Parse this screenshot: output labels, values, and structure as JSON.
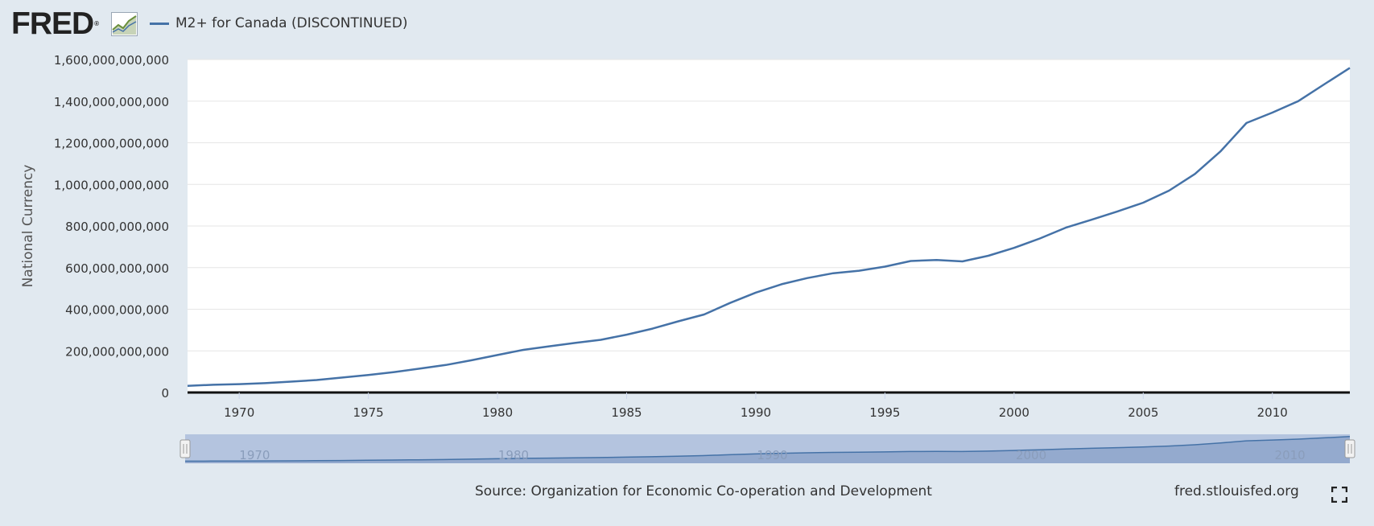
{
  "header": {
    "logo_text": "FRED",
    "logo_reg": "®",
    "logo_icon": "line-chart-icon",
    "legend_label": "M2+ for Canada (DISCONTINUED)"
  },
  "footer": {
    "source": "Source: Organization for Economic Co-operation and Development",
    "site": "fred.stlouisfed.org",
    "fullscreen_icon": "fullscreen-icon"
  },
  "colors": {
    "background": "#e1e9f0",
    "plot_bg": "#ffffff",
    "series": "#4572a7",
    "navigator_mask": "#b4c4df",
    "navigator_area": "#8aa1c8"
  },
  "chart_data": {
    "type": "line",
    "title": "",
    "ylabel": "National Currency",
    "xlabel": "",
    "xlim": [
      1968,
      2013
    ],
    "ylim": [
      0,
      1600000000000
    ],
    "grid": true,
    "legend_position": "top-left",
    "yticks": [
      0,
      200000000000,
      400000000000,
      600000000000,
      800000000000,
      1000000000000,
      1200000000000,
      1400000000000,
      1600000000000
    ],
    "ytick_labels": [
      "0",
      "200,000,000,000",
      "400,000,000,000",
      "600,000,000,000",
      "800,000,000,000",
      "1,000,000,000,000",
      "1,200,000,000,000",
      "1,400,000,000,000",
      "1,600,000,000,000"
    ],
    "xticks": [
      1970,
      1975,
      1980,
      1985,
      1990,
      1995,
      2000,
      2005,
      2010
    ],
    "xtick_labels": [
      "1970",
      "1975",
      "1980",
      "1985",
      "1990",
      "1995",
      "2000",
      "2005",
      "2010"
    ],
    "navigator_labels": [
      "1970",
      "1980",
      "1990",
      "2000",
      "2010"
    ],
    "series": [
      {
        "name": "M2+ for Canada (DISCONTINUED)",
        "color": "#4572a7",
        "x": [
          1968,
          1969,
          1970,
          1971,
          1972,
          1973,
          1974,
          1975,
          1976,
          1977,
          1978,
          1979,
          1980,
          1981,
          1982,
          1983,
          1984,
          1985,
          1986,
          1987,
          1988,
          1989,
          1990,
          1991,
          1992,
          1993,
          1994,
          1995,
          1996,
          1997,
          1998,
          1999,
          2000,
          2001,
          2002,
          2003,
          2004,
          2005,
          2006,
          2007,
          2008,
          2009,
          2010,
          2011,
          2012,
          2013
        ],
        "y": [
          32000000000,
          37000000000,
          40000000000,
          45000000000,
          52000000000,
          60000000000,
          72000000000,
          84000000000,
          98000000000,
          115000000000,
          132000000000,
          155000000000,
          180000000000,
          205000000000,
          222000000000,
          238000000000,
          253000000000,
          278000000000,
          307000000000,
          342000000000,
          375000000000,
          430000000000,
          480000000000,
          520000000000,
          550000000000,
          573000000000,
          585000000000,
          605000000000,
          632000000000,
          637000000000,
          630000000000,
          657000000000,
          695000000000,
          740000000000,
          792000000000,
          830000000000,
          870000000000,
          912000000000,
          970000000000,
          1050000000000,
          1160000000000,
          1295000000000,
          1345000000000,
          1400000000000,
          1480000000000,
          1560000000000
        ]
      }
    ]
  }
}
